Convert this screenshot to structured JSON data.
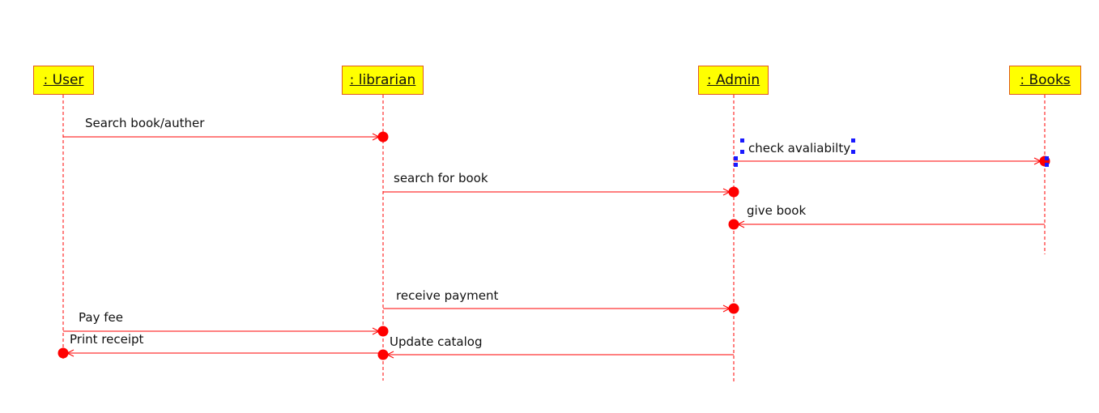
{
  "colors": {
    "line": "#ff0000",
    "box_fill": "#ffff00",
    "box_border": "#e05a1a",
    "selection": "#1a1aff"
  },
  "lifelines": [
    {
      "id": "user",
      "label": ": User"
    },
    {
      "id": "librarian",
      "label": ": librarian"
    },
    {
      "id": "admin",
      "label": ": Admin"
    },
    {
      "id": "books",
      "label": ": Books"
    }
  ],
  "messages": [
    {
      "id": "m1",
      "label": "Search book/auther",
      "from": "user",
      "to": "librarian"
    },
    {
      "id": "m2",
      "label": "check avaliabilty",
      "from": "admin",
      "to": "books"
    },
    {
      "id": "m3",
      "label": "search for book",
      "from": "librarian",
      "to": "admin"
    },
    {
      "id": "m4",
      "label": "give book",
      "from": "books",
      "to": "admin"
    },
    {
      "id": "m5",
      "label": "receive payment",
      "from": "librarian",
      "to": "admin"
    },
    {
      "id": "m6",
      "label": "Pay fee",
      "from": "user",
      "to": "librarian"
    },
    {
      "id": "m7",
      "label": "Print receipt",
      "from": "librarian",
      "to": "user"
    },
    {
      "id": "m8",
      "label": "Update catalog",
      "from": "admin",
      "to": "librarian"
    }
  ]
}
